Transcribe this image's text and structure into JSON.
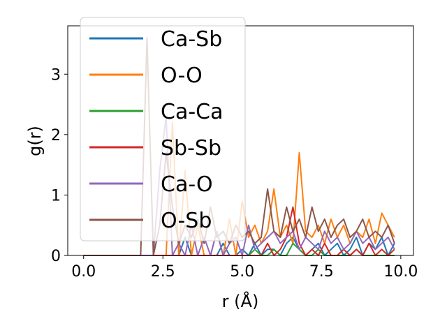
{
  "chart_data": {
    "type": "line",
    "xlabel": "r (Å)",
    "ylabel": "g(r)",
    "xlim": [
      -0.5,
      10.4
    ],
    "ylim": [
      0,
      3.8
    ],
    "xticks": [
      0.0,
      2.5,
      5.0,
      7.5,
      10.0
    ],
    "xtick_labels": [
      "0.0",
      "2.5",
      "5.0",
      "7.5",
      "10.0"
    ],
    "yticks": [
      0,
      1,
      2,
      3
    ],
    "ytick_labels": [
      "0",
      "1",
      "2",
      "3"
    ],
    "grid": false,
    "legend_position": "upper-left",
    "x": [
      0.0,
      0.2,
      0.4,
      0.6,
      0.8,
      1.0,
      1.2,
      1.4,
      1.6,
      1.8,
      2.0,
      2.2,
      2.4,
      2.6,
      2.8,
      3.0,
      3.2,
      3.4,
      3.6,
      3.8,
      4.0,
      4.2,
      4.4,
      4.6,
      4.8,
      5.0,
      5.2,
      5.4,
      5.6,
      5.8,
      6.0,
      6.2,
      6.4,
      6.6,
      6.8,
      7.0,
      7.2,
      7.4,
      7.6,
      7.8,
      8.0,
      8.2,
      8.4,
      8.6,
      8.8,
      9.0,
      9.2,
      9.4,
      9.6,
      9.8
    ],
    "series": [
      {
        "name": "Ca-Sb",
        "color": "#1f77b4",
        "values": [
          0,
          0,
          0,
          0,
          0,
          0,
          0,
          0,
          0,
          0,
          0,
          0,
          0,
          0,
          0,
          0,
          0.3,
          0,
          0,
          0,
          0,
          0,
          0.2,
          0,
          0,
          0.1,
          0,
          0.2,
          0,
          0.1,
          0.1,
          0,
          0.2,
          0.3,
          0.1,
          0,
          0.1,
          0.2,
          0,
          0.1,
          0.2,
          0,
          0.1,
          0.3,
          0,
          0.2,
          0.1,
          0.3,
          0,
          0.2
        ]
      },
      {
        "name": "O-O",
        "color": "#ff7f0e",
        "values": [
          0,
          0,
          0,
          0,
          0,
          0,
          0,
          0,
          0,
          0,
          0,
          0,
          0,
          0,
          2.2,
          0,
          1.4,
          0,
          0.5,
          0,
          0,
          0.4,
          0,
          0.6,
          0,
          0.9,
          0.3,
          0.5,
          0.2,
          0.4,
          1.1,
          0.3,
          0.5,
          0.2,
          1.7,
          0.4,
          0.3,
          0.5,
          0.2,
          0.6,
          0.3,
          0.5,
          0.2,
          0.4,
          0.3,
          0.6,
          0.2,
          0.7,
          0.5,
          0.3
        ]
      },
      {
        "name": "Ca-Ca",
        "color": "#2ca02c",
        "values": [
          0,
          0,
          0,
          0,
          0,
          0,
          0,
          0,
          0,
          0,
          0,
          0,
          0,
          0,
          0,
          0,
          0,
          0,
          0,
          0,
          0,
          0,
          0,
          0,
          0,
          0,
          0,
          0.1,
          0,
          0,
          0.1,
          0,
          0,
          0.2,
          0.1,
          0,
          0,
          0.1,
          0,
          0,
          0,
          0,
          0,
          0.1,
          0,
          0,
          0,
          0,
          0,
          0
        ]
      },
      {
        "name": "Sb-Sb",
        "color": "#d62728",
        "values": [
          0,
          0,
          0,
          0,
          0,
          0,
          0,
          0,
          0,
          0,
          0,
          0,
          0,
          0,
          0,
          0,
          0,
          0,
          0,
          0,
          0,
          0,
          0,
          0,
          0,
          0,
          0,
          0,
          0,
          0.2,
          0,
          0.1,
          0.3,
          0.8,
          0.2,
          0,
          0.1,
          0,
          0.2,
          0,
          0,
          0.1,
          0,
          0.1,
          0,
          0.2,
          0,
          0.1,
          0,
          0.1
        ]
      },
      {
        "name": "Ca-O",
        "color": "#9467bd",
        "values": [
          0,
          0,
          0,
          0,
          0,
          0,
          0,
          0,
          0,
          0,
          0,
          0,
          1.4,
          2.3,
          0,
          0.2,
          0,
          0.5,
          0,
          0.3,
          0,
          0.4,
          0,
          0.2,
          0.3,
          0,
          0.5,
          0.1,
          0.2,
          0.3,
          0.4,
          0.2,
          0.3,
          0.4,
          0.1,
          0.3,
          0.2,
          0.1,
          0.4,
          0.2,
          0.3,
          0.1,
          0.2,
          0.4,
          0.2,
          0.3,
          0.1,
          0.2,
          0.3,
          0.1
        ]
      },
      {
        "name": "O-Sb",
        "color": "#8c564b",
        "values": [
          0,
          0,
          0,
          0,
          0,
          0,
          0,
          0,
          0,
          0,
          3.6,
          0,
          0.5,
          1.7,
          0.8,
          0.2,
          0.5,
          0.3,
          0.6,
          0.2,
          0.8,
          0.3,
          0.4,
          0.2,
          0.5,
          0.3,
          0.4,
          0.2,
          0.3,
          1.1,
          0.4,
          0.3,
          0.8,
          0.4,
          0.6,
          0.3,
          0.8,
          0.4,
          0.6,
          0.3,
          0.5,
          0.6,
          0.3,
          0.4,
          0.6,
          0.3,
          0.4,
          0.3,
          0.5,
          0.2
        ]
      }
    ]
  }
}
